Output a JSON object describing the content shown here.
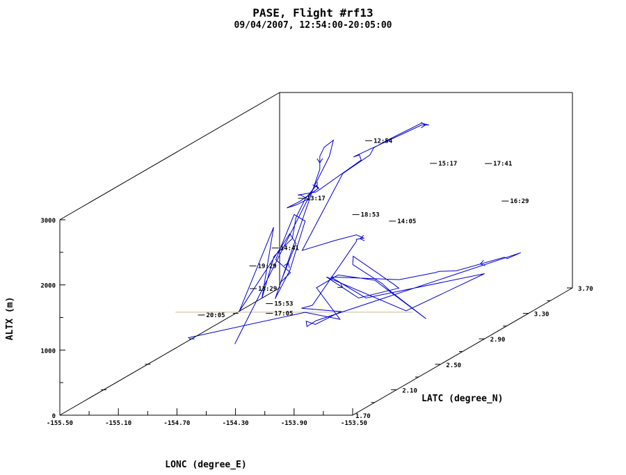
{
  "chart_data": {
    "type": "line",
    "title": "PASE, Flight #rf13",
    "subtitle": "09/04/2007, 12:54:00-20:05:00",
    "xlabel": "LONC (degree_E)",
    "ylabel": "LATC (degree_N)",
    "zlabel": "ALTX (m)",
    "xlim": [
      -155.5,
      -153.5
    ],
    "ylim": [
      1.7,
      3.7
    ],
    "zlim": [
      0,
      3000
    ],
    "x_ticks": [
      "-155.50",
      "-155.10",
      "-154.70",
      "-154.30",
      "-153.90",
      "-153.50"
    ],
    "y_ticks": [
      "1.70",
      "2.10",
      "2.50",
      "2.90",
      "3.30",
      "3.70"
    ],
    "z_ticks": [
      "0",
      "1000",
      "2000",
      "3000"
    ],
    "grid": false,
    "colors": {
      "track": "#0000cc",
      "reference_line": "#c8b98c",
      "axes": "#000000"
    },
    "series": [
      {
        "x": [
          -154.53,
          -154.56,
          -154.57,
          -154.55,
          -154.55,
          -154.55,
          -154.48,
          -154.49,
          -154.5,
          -154.5,
          -154.4,
          -154.3,
          -154.33,
          -154.3,
          -154.38,
          -154.5,
          -154.49,
          -154.42,
          -154.45,
          -154.46,
          -154.45,
          -154.46,
          -154.46,
          -154.48,
          -154.5,
          -154.45,
          -154.5,
          -154.55,
          -154.52,
          -154.48,
          -154.53,
          -154.55,
          -154.5,
          -154.53,
          -154.58,
          -154.62,
          -154.53,
          -154.48,
          -154.53,
          -154.51,
          -154.52,
          -154.53,
          -154.52,
          -154.52,
          -154.3,
          -154.18,
          -154.13,
          -154.15,
          -154.15,
          -154.15,
          -154.15,
          -153.88,
          -153.98,
          -154.08,
          -154.09,
          -154.05,
          -153.5,
          -153.6,
          -153.62,
          -153.88,
          -153.96,
          -153.95,
          -154.12,
          -154.55,
          -154.1,
          -153.5,
          -153.75,
          -154.58,
          -154.15,
          -153.8,
          -153.85,
          -154.45,
          -154.45,
          -154.4,
          -154.2,
          -153.93,
          -153.6,
          -154.25,
          -154.5,
          -154.52,
          -154.18,
          -154.5,
          -155.0
        ],
        "y": [
          2.0,
          2.9,
          2.95,
          2.84,
          2.8,
          2.8,
          2.3,
          2.45,
          2.6,
          2.5,
          2.2,
          2.2,
          2.15,
          2.25,
          2.3,
          2.0,
          2.3,
          2.1,
          2.25,
          2.43,
          2.45,
          2.55,
          2.65,
          2.7,
          2.7,
          2.65,
          2.55,
          2.5,
          2.55,
          2.6,
          2.6,
          2.6,
          2.7,
          3.15,
          3.2,
          3.2,
          3.7,
          3.7,
          3.7,
          3.35,
          3.25,
          3.23,
          2.97,
          2.6,
          2.6,
          2.64,
          2.64,
          2.6,
          2.6,
          2.2,
          2.1,
          2.1,
          2.0,
          2.05,
          2.07,
          2.1,
          3.23,
          3.24,
          3.24,
          3.15,
          3.1,
          3.05,
          2.95,
          2.9,
          2.62,
          2.9,
          2.52,
          2.9,
          2.62,
          2.52,
          2.54,
          2.97,
          2.97,
          2.9,
          2.9,
          2.62,
          2.5,
          2.9,
          2.9,
          2.73,
          2.49,
          2.6,
          2.2
        ],
        "z": [
          800,
          2800,
          3000,
          3000,
          2900,
          2700,
          1200,
          1500,
          2100,
          2300,
          1900,
          1700,
          1600,
          2100,
          2200,
          1300,
          2300,
          1400,
          1900,
          2000,
          2300,
          2500,
          2600,
          2500,
          2550,
          2550,
          2450,
          2400,
          2400,
          2440,
          2500,
          2500,
          2450,
          2500,
          2530,
          2500,
          2500,
          2500,
          2530,
          2600,
          2590,
          2500,
          2470,
          1650,
          1800,
          1850,
          1800,
          1820,
          1790,
          1200,
          1250,
          1200,
          1100,
          1100,
          1000,
          1060,
          1000,
          900,
          920,
          800,
          840,
          870,
          860,
          950,
          900,
          1000,
          800,
          950,
          900,
          1150,
          1190,
          1200,
          1170,
          1140,
          850,
          1000,
          700,
          900,
          980,
          950,
          700,
          700,
          700
        ]
      }
    ],
    "time_labels": [
      {
        "text": "12:54",
        "x": -154.53,
        "y": 3.25,
        "z": 2700
      },
      {
        "text": "15:17",
        "x": -154.05,
        "y": 3.2,
        "z": 2400
      },
      {
        "text": "17:41",
        "x": -153.75,
        "y": 3.3,
        "z": 2300
      },
      {
        "text": "13:17",
        "x": -154.5,
        "y": 2.6,
        "z": 2450
      },
      {
        "text": "16:29",
        "x": -153.5,
        "y": 3.12,
        "z": 1900
      },
      {
        "text": "18:53",
        "x": -154.13,
        "y": 2.6,
        "z": 2200
      },
      {
        "text": "14:05",
        "x": -153.88,
        "y": 2.6,
        "z": 2100
      },
      {
        "text": "20:05",
        "x": -154.9,
        "y": 2.22,
        "z": 1030
      },
      {
        "text": "14:41",
        "x": -154.44,
        "y": 2.28,
        "z": 2000
      },
      {
        "text": "19:29",
        "x": -154.42,
        "y": 2.05,
        "z": 1950
      },
      {
        "text": "13:29",
        "x": -154.38,
        "y": 2.0,
        "z": 1650
      },
      {
        "text": "15:53",
        "x": -154.27,
        "y": 2.0,
        "z": 1420
      },
      {
        "text": "17:05",
        "x": -154.27,
        "y": 2.0,
        "z": 1270
      }
    ],
    "reference_line": {
      "z": 800,
      "x_range": [
        -155.5,
        -153.5
      ],
      "y": 2.5
    }
  }
}
